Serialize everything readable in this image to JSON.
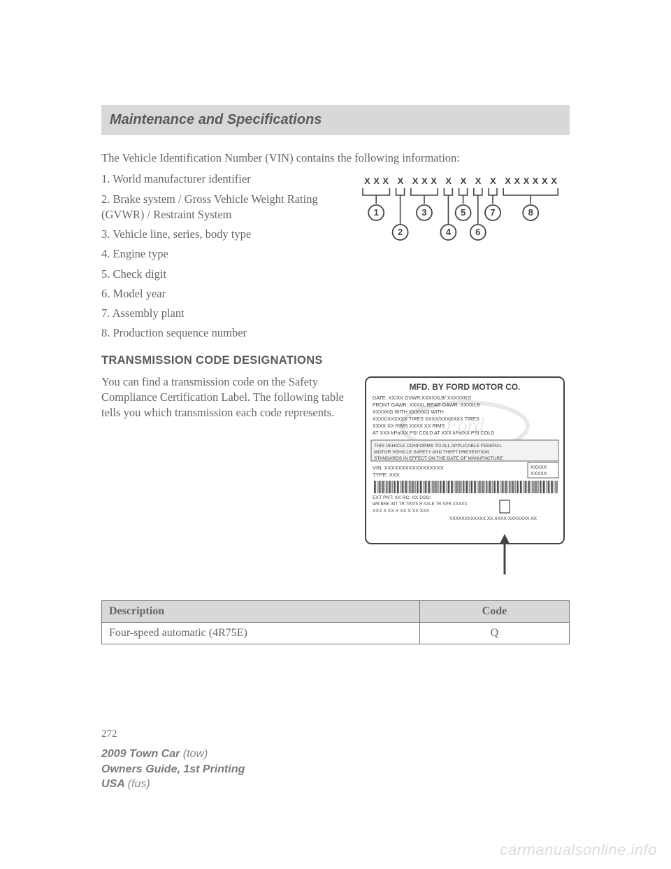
{
  "header": {
    "title": "Maintenance and Specifications"
  },
  "intro": "The Vehicle Identification Number (VIN) contains the following information:",
  "vin_items": [
    "1. World manufacturer identifier",
    "2. Brake system / Gross Vehicle Weight Rating (GVWR) / Restraint System",
    "3. Vehicle line, series, body type",
    "4. Engine type",
    "5. Check digit",
    "6. Model year",
    "7. Assembly plant",
    "8. Production sequence number"
  ],
  "vin_diagram": {
    "char": "X",
    "groups": [
      3,
      1,
      3,
      1,
      1,
      1,
      1,
      6
    ],
    "circle_labels": [
      "1",
      "2",
      "3",
      "4",
      "5",
      "6",
      "7",
      "8"
    ],
    "stroke": "#444444",
    "font": "Arial",
    "char_size": 13,
    "circle_r": 11,
    "circle_font": 13
  },
  "trans_head": "TRANSMISSION CODE DESIGNATIONS",
  "trans_text": "You can find a transmission code on the Safety Compliance Certification Label. The following table tells you which transmission each code represents.",
  "cert_label": {
    "title": "MFD. BY FORD MOTOR CO.",
    "lines": [
      "DATE: XX/XX            GVWR:XXXXXLB/ XXXXXKG",
      "FRONT GAWR: XXXXL      REAR GAWR:   XXXXLB",
      "   XXXXKG        WITH     XXXXKG        WITH",
      "   XXXX/XXXXXX   TIRES    XXXX/XXXXXXX  TIRES",
      "   XXXX XX       RIMS     XXXX XX       RIMS",
      "AT XXX kPa/XX  PSI COLD  AT XXX kPa/XX PSI COLD"
    ],
    "disclaimer": "THIS VEHICLE CONFORMS TO ALL APPLICABLE FEDERAL MOTOR VEHICLE SAFETY AND THEFT PREVENTION STANDARDS IN EFFECT ON THE DATE OF MANUFACTURE SHOWN ABOVE.",
    "vin": "VIN:   XXXXXXXXXXXXXXXXX",
    "type": "TYPE:  XXX",
    "side_box": [
      "XXXXX",
      "XXXXX"
    ],
    "bottom1": "EXT PNT:  XX        RC: XX    DSO:",
    "bottom2": "WB  BRK  INT TR  TP/PS  R  AXLE  TR  SPR  XXXXX",
    "bottom3": "XXX  X    XX      X   XX   X XX  XXX",
    "bottom4": "XXXXXXXXXXXX XX  XXXX-XXXXXXX-XX",
    "border": "#444444",
    "bg": "#ffffff",
    "ford_oval": "#e8e8e8"
  },
  "table": {
    "headers": [
      "Description",
      "Code"
    ],
    "rows": [
      [
        "Four-speed automatic (4R75E)",
        "Q"
      ]
    ],
    "header_bg": "#d8d8d8",
    "border": "#777777"
  },
  "pagenum": "272",
  "footer": {
    "l1a": "2009 Town Car ",
    "l1b": "(tow)",
    "l2": "Owners Guide, 1st Printing",
    "l3a": "USA ",
    "l3b": "(fus)"
  },
  "watermark": "carmanualsonline.info"
}
